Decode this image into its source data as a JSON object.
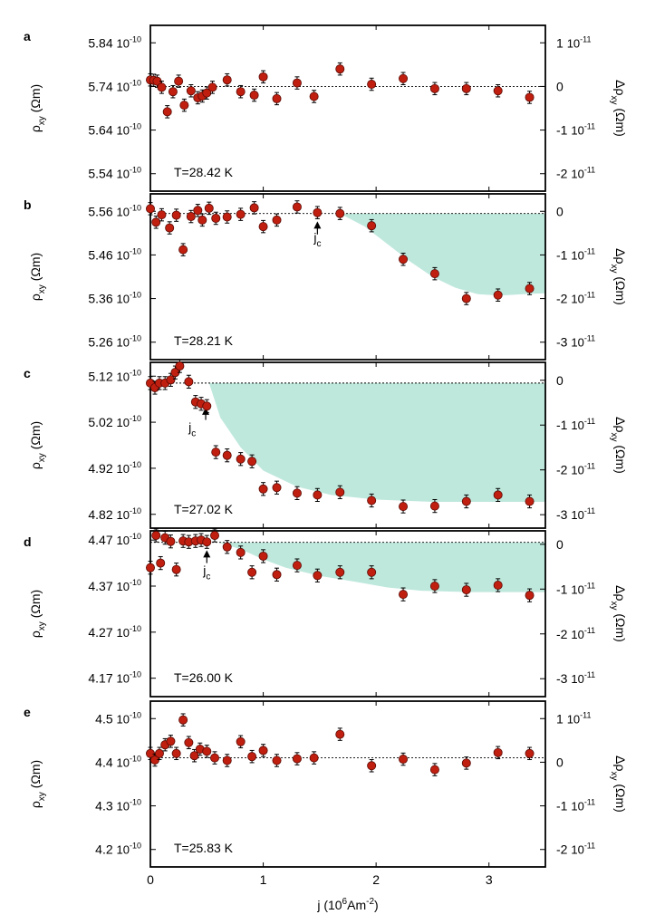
{
  "colors": {
    "marker_fill": "#c01f10",
    "marker_stroke": "#5a0a04",
    "shade": "#bfe8dd",
    "axis": "#000000",
    "zero_line": "#000000"
  },
  "common": {
    "x_label_prefix": "j (10",
    "x_label_exp": "6",
    "x_label_unit": "Am",
    "x_label_unit_exp": "-2",
    "x_label_suffix": ")",
    "x_ticks": [
      "0",
      "1",
      "2",
      "3"
    ],
    "left_label": "ρ",
    "left_label_sub": "xy",
    "left_label_unit": " (Ωm)",
    "right_label": "Δρ",
    "right_label_sub": "xy",
    "right_label_unit": " (Ωm)",
    "jc_label": "j",
    "jc_sub": "c",
    "tick_base": "10",
    "tick_exp_left": "-10",
    "tick_exp_right": "-11"
  },
  "chart_data": [
    {
      "type": "scatter",
      "panel": "a",
      "temperature": "T=28.42 K",
      "xlabel": "j (10^6 Am^-2)",
      "ylabel_left": "ρxy (Ωm)",
      "ylabel_right": "Δρxy (Ωm)",
      "xlim": [
        0,
        3.5
      ],
      "ylim_left": [
        5.5,
        5.88
      ],
      "ylim_right": [
        -2.4,
        1.4
      ],
      "right_zero_at_left": 5.74,
      "left_ticks": [
        5.84,
        5.74,
        5.64,
        5.54
      ],
      "left_tick_labels": [
        "5.84",
        "5.74",
        "5.64",
        "5.54"
      ],
      "right_ticks": [
        1,
        0,
        -1,
        -2
      ],
      "right_tick_labels": [
        "1",
        "0",
        "-1",
        "-2"
      ],
      "right_tick_has_exp": [
        true,
        false,
        true,
        true
      ],
      "shade": null,
      "jc": null,
      "x": [
        0.0,
        0.03,
        0.06,
        0.1,
        0.15,
        0.2,
        0.25,
        0.3,
        0.36,
        0.42,
        0.46,
        0.5,
        0.55,
        0.68,
        0.8,
        0.92,
        1.0,
        1.12,
        1.3,
        1.45,
        1.68,
        1.96,
        2.24,
        2.52,
        2.8,
        3.08,
        3.36
      ],
      "y": [
        5.755,
        5.754,
        5.752,
        5.738,
        5.682,
        5.728,
        5.752,
        5.697,
        5.73,
        5.714,
        5.718,
        5.725,
        5.738,
        5.755,
        5.728,
        5.72,
        5.762,
        5.712,
        5.748,
        5.717,
        5.78,
        5.745,
        5.758,
        5.735,
        5.735,
        5.73,
        5.715
      ],
      "err": 0.014
    },
    {
      "type": "scatter",
      "panel": "b",
      "temperature": "T=28.21 K",
      "xlabel": "j (10^6 Am^-2)",
      "ylabel_left": "ρxy (Ωm)",
      "ylabel_right": "Δρxy (Ωm)",
      "xlim": [
        0,
        3.5
      ],
      "ylim_left": [
        5.22,
        5.6
      ],
      "ylim_right": [
        -3.4,
        0.4
      ],
      "right_zero_at_left": 5.555,
      "left_ticks": [
        5.56,
        5.46,
        5.36,
        5.26
      ],
      "left_tick_labels": [
        "5.56",
        "5.46",
        "5.36",
        "5.26"
      ],
      "right_ticks": [
        0,
        -1,
        -2,
        -3
      ],
      "right_tick_labels": [
        "0",
        "-1",
        "-2",
        "-3"
      ],
      "right_tick_has_exp": [
        false,
        true,
        true,
        true
      ],
      "shade": {
        "x": [
          1.68,
          1.9,
          2.1,
          2.3,
          2.5,
          2.7,
          2.9,
          3.1,
          3.3,
          3.5
        ],
        "y": [
          5.555,
          5.525,
          5.485,
          5.445,
          5.41,
          5.385,
          5.37,
          5.367,
          5.37,
          5.372
        ]
      },
      "jc": {
        "x": 1.48,
        "arrow_tip": 5.537,
        "arrow_tail": 5.507,
        "label_y": 5.49,
        "label_offset": 0.0
      },
      "x": [
        0.0,
        0.05,
        0.1,
        0.17,
        0.23,
        0.29,
        0.36,
        0.42,
        0.46,
        0.52,
        0.58,
        0.68,
        0.8,
        0.92,
        1.0,
        1.12,
        1.3,
        1.48,
        1.68,
        1.96,
        2.24,
        2.52,
        2.8,
        3.08,
        3.36
      ],
      "y": [
        5.566,
        5.535,
        5.552,
        5.522,
        5.551,
        5.472,
        5.548,
        5.562,
        5.54,
        5.567,
        5.544,
        5.547,
        5.553,
        5.568,
        5.525,
        5.54,
        5.57,
        5.557,
        5.555,
        5.527,
        5.45,
        5.417,
        5.36,
        5.368,
        5.383
      ],
      "err": 0.014
    },
    {
      "type": "scatter",
      "panel": "c",
      "temperature": "T=27.02 K",
      "xlabel": "j (10^6 Am^-2)",
      "ylabel_left": "ρxy (Ωm)",
      "ylabel_right": "Δρxy (Ωm)",
      "xlim": [
        0,
        3.5
      ],
      "ylim_left": [
        4.79,
        5.15
      ],
      "ylim_right": [
        -3.3,
        0.4
      ],
      "right_zero_at_left": 5.105,
      "left_ticks": [
        5.12,
        5.02,
        4.92,
        4.82
      ],
      "left_tick_labels": [
        "5.12",
        "5.02",
        "4.92",
        "4.82"
      ],
      "right_ticks": [
        0,
        -1,
        -2,
        -3
      ],
      "right_tick_labels": [
        "0",
        "-1",
        "-2",
        "-3"
      ],
      "right_tick_has_exp": [
        false,
        true,
        true,
        true
      ],
      "shade": {
        "x": [
          0.52,
          0.62,
          0.8,
          1.0,
          1.3,
          1.6,
          2.0,
          2.5,
          3.0,
          3.5
        ],
        "y": [
          5.105,
          5.03,
          4.965,
          4.915,
          4.88,
          4.862,
          4.852,
          4.847,
          4.847,
          4.847
        ]
      },
      "jc": {
        "x": 0.49,
        "arrow_tip": 5.052,
        "arrow_tail": 5.025,
        "label_y": 5.0,
        "label_offset": -0.12
      },
      "x": [
        0.0,
        0.04,
        0.08,
        0.13,
        0.18,
        0.22,
        0.26,
        0.34,
        0.4,
        0.45,
        0.5,
        0.58,
        0.68,
        0.8,
        0.9,
        1.0,
        1.12,
        1.3,
        1.48,
        1.68,
        1.96,
        2.24,
        2.52,
        2.8,
        3.08,
        3.36
      ],
      "y": [
        5.105,
        5.095,
        5.105,
        5.105,
        5.112,
        5.128,
        5.142,
        5.108,
        5.064,
        5.06,
        5.055,
        4.955,
        4.948,
        4.94,
        4.935,
        4.875,
        4.878,
        4.866,
        4.862,
        4.868,
        4.85,
        4.837,
        4.838,
        4.848,
        4.862,
        4.848
      ],
      "err": 0.014
    },
    {
      "type": "scatter",
      "panel": "d",
      "temperature": "T=26.00 K",
      "xlabel": "j (10^6 Am^-2)",
      "ylabel_left": "ρxy (Ωm)",
      "ylabel_right": "Δρxy (Ωm)",
      "xlim": [
        0,
        3.5
      ],
      "ylim_left": [
        4.13,
        4.49
      ],
      "ylim_right": [
        -3.4,
        0.3
      ],
      "right_zero_at_left": 4.465,
      "left_ticks": [
        4.47,
        4.37,
        4.27,
        4.17
      ],
      "left_tick_labels": [
        "4.47",
        "4.37",
        "4.27",
        "4.17"
      ],
      "right_ticks": [
        0,
        -1,
        -2,
        -3
      ],
      "right_tick_labels": [
        "0",
        "-1",
        "-2",
        "-3"
      ],
      "right_tick_has_exp": [
        false,
        true,
        true,
        true
      ],
      "shade": {
        "x": [
          0.6,
          0.8,
          1.0,
          1.2,
          1.5,
          1.8,
          2.1,
          2.4,
          2.8,
          3.2,
          3.5
        ],
        "y": [
          4.465,
          4.45,
          4.428,
          4.41,
          4.392,
          4.38,
          4.367,
          4.36,
          4.357,
          4.357,
          4.357
        ]
      },
      "jc": {
        "x": 0.5,
        "arrow_tip": 4.448,
        "arrow_tail": 4.42,
        "label_y": 4.395,
        "label_offset": 0.0
      },
      "x": [
        0.0,
        0.05,
        0.09,
        0.13,
        0.18,
        0.23,
        0.29,
        0.34,
        0.4,
        0.45,
        0.5,
        0.57,
        0.68,
        0.8,
        0.9,
        1.0,
        1.12,
        1.3,
        1.48,
        1.68,
        1.96,
        2.24,
        2.52,
        2.8,
        3.08,
        3.36
      ],
      "y": [
        4.41,
        4.48,
        4.42,
        4.475,
        4.467,
        4.406,
        4.468,
        4.466,
        4.468,
        4.47,
        4.466,
        4.48,
        4.455,
        4.443,
        4.4,
        4.435,
        4.395,
        4.415,
        4.393,
        4.4,
        4.4,
        4.352,
        4.37,
        4.362,
        4.372,
        4.35
      ],
      "err": 0.014
    },
    {
      "type": "scatter",
      "panel": "e",
      "temperature": "T=25.83 K",
      "xlabel": "j (10^6 Am^-2)",
      "ylabel_left": "ρxy (Ωm)",
      "ylabel_right": "Δρxy (Ωm)",
      "xlim": [
        0,
        3.5
      ],
      "ylim_left": [
        4.16,
        4.54
      ],
      "ylim_right": [
        -2.4,
        1.4
      ],
      "right_zero_at_left": 4.41,
      "left_ticks": [
        4.5,
        4.4,
        4.3,
        4.2
      ],
      "left_tick_labels": [
        "4.5",
        "4.4",
        "4.3",
        "4.2"
      ],
      "right_ticks": [
        1,
        0,
        -1,
        -2
      ],
      "right_tick_labels": [
        "1",
        "0",
        "-1",
        "-2"
      ],
      "right_tick_has_exp": [
        true,
        false,
        true,
        true
      ],
      "shade": null,
      "jc": null,
      "x": [
        0.0,
        0.04,
        0.08,
        0.13,
        0.18,
        0.23,
        0.29,
        0.34,
        0.39,
        0.44,
        0.5,
        0.57,
        0.68,
        0.8,
        0.9,
        1.0,
        1.12,
        1.3,
        1.45,
        1.68,
        1.96,
        2.24,
        2.52,
        2.8,
        3.08,
        3.36
      ],
      "y": [
        4.42,
        4.405,
        4.42,
        4.44,
        4.448,
        4.42,
        4.497,
        4.445,
        4.415,
        4.43,
        4.425,
        4.41,
        4.404,
        4.447,
        4.413,
        4.427,
        4.404,
        4.408,
        4.41,
        4.464,
        4.392,
        4.407,
        4.383,
        4.398,
        4.422,
        4.42
      ],
      "err": 0.014
    }
  ]
}
